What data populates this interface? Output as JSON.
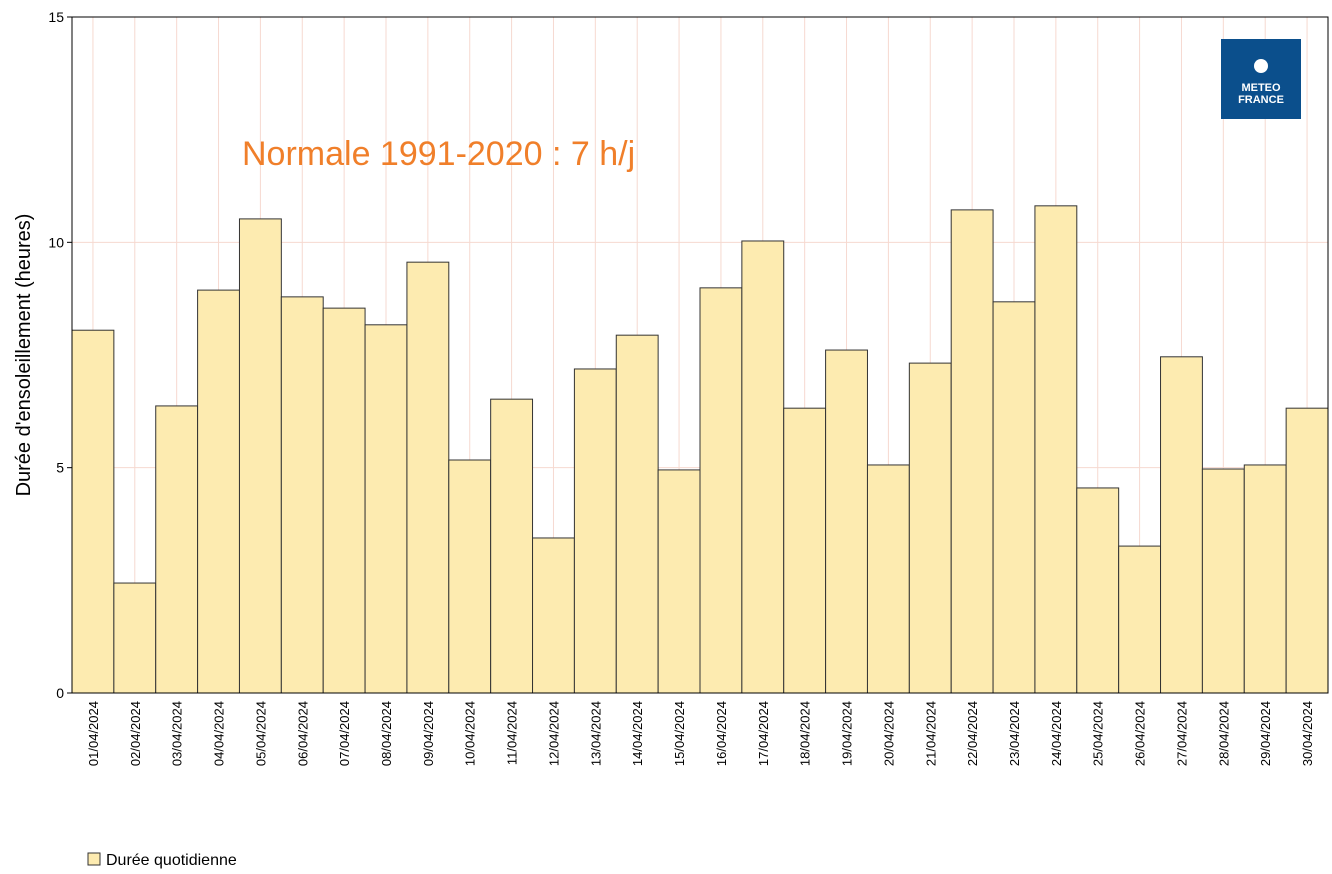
{
  "chart_data": {
    "type": "bar",
    "ylabel": "Durée d'ensoleillement (heures)",
    "annotation": "Normale 1991-2020 : 7 h/j",
    "logo_text": [
      "METEO",
      "FRANCE"
    ],
    "categories": [
      "01/04/2024",
      "02/04/2024",
      "03/04/2024",
      "04/04/2024",
      "05/04/2024",
      "06/04/2024",
      "07/04/2024",
      "08/04/2024",
      "09/04/2024",
      "10/04/2024",
      "11/04/2024",
      "12/04/2024",
      "13/04/2024",
      "14/04/2024",
      "15/04/2024",
      "16/04/2024",
      "17/04/2024",
      "18/04/2024",
      "19/04/2024",
      "20/04/2024",
      "21/04/2024",
      "22/04/2024",
      "23/04/2024",
      "24/04/2024",
      "25/04/2024",
      "26/04/2024",
      "27/04/2024",
      "28/04/2024",
      "29/04/2024",
      "30/04/2024"
    ],
    "series": [
      {
        "name": "Durée quotidienne",
        "color": "#fdebb0",
        "values": [
          8.05,
          2.44,
          6.37,
          8.94,
          10.52,
          8.79,
          8.54,
          8.17,
          9.56,
          5.17,
          6.52,
          3.44,
          7.19,
          7.94,
          4.95,
          8.99,
          10.03,
          6.32,
          7.61,
          5.06,
          7.32,
          10.72,
          8.68,
          10.81,
          4.55,
          3.26,
          7.46,
          4.97,
          5.06,
          6.32
        ]
      }
    ],
    "ylim": [
      0,
      15
    ],
    "yticks": [
      0,
      5,
      10,
      15
    ],
    "grid": true
  }
}
